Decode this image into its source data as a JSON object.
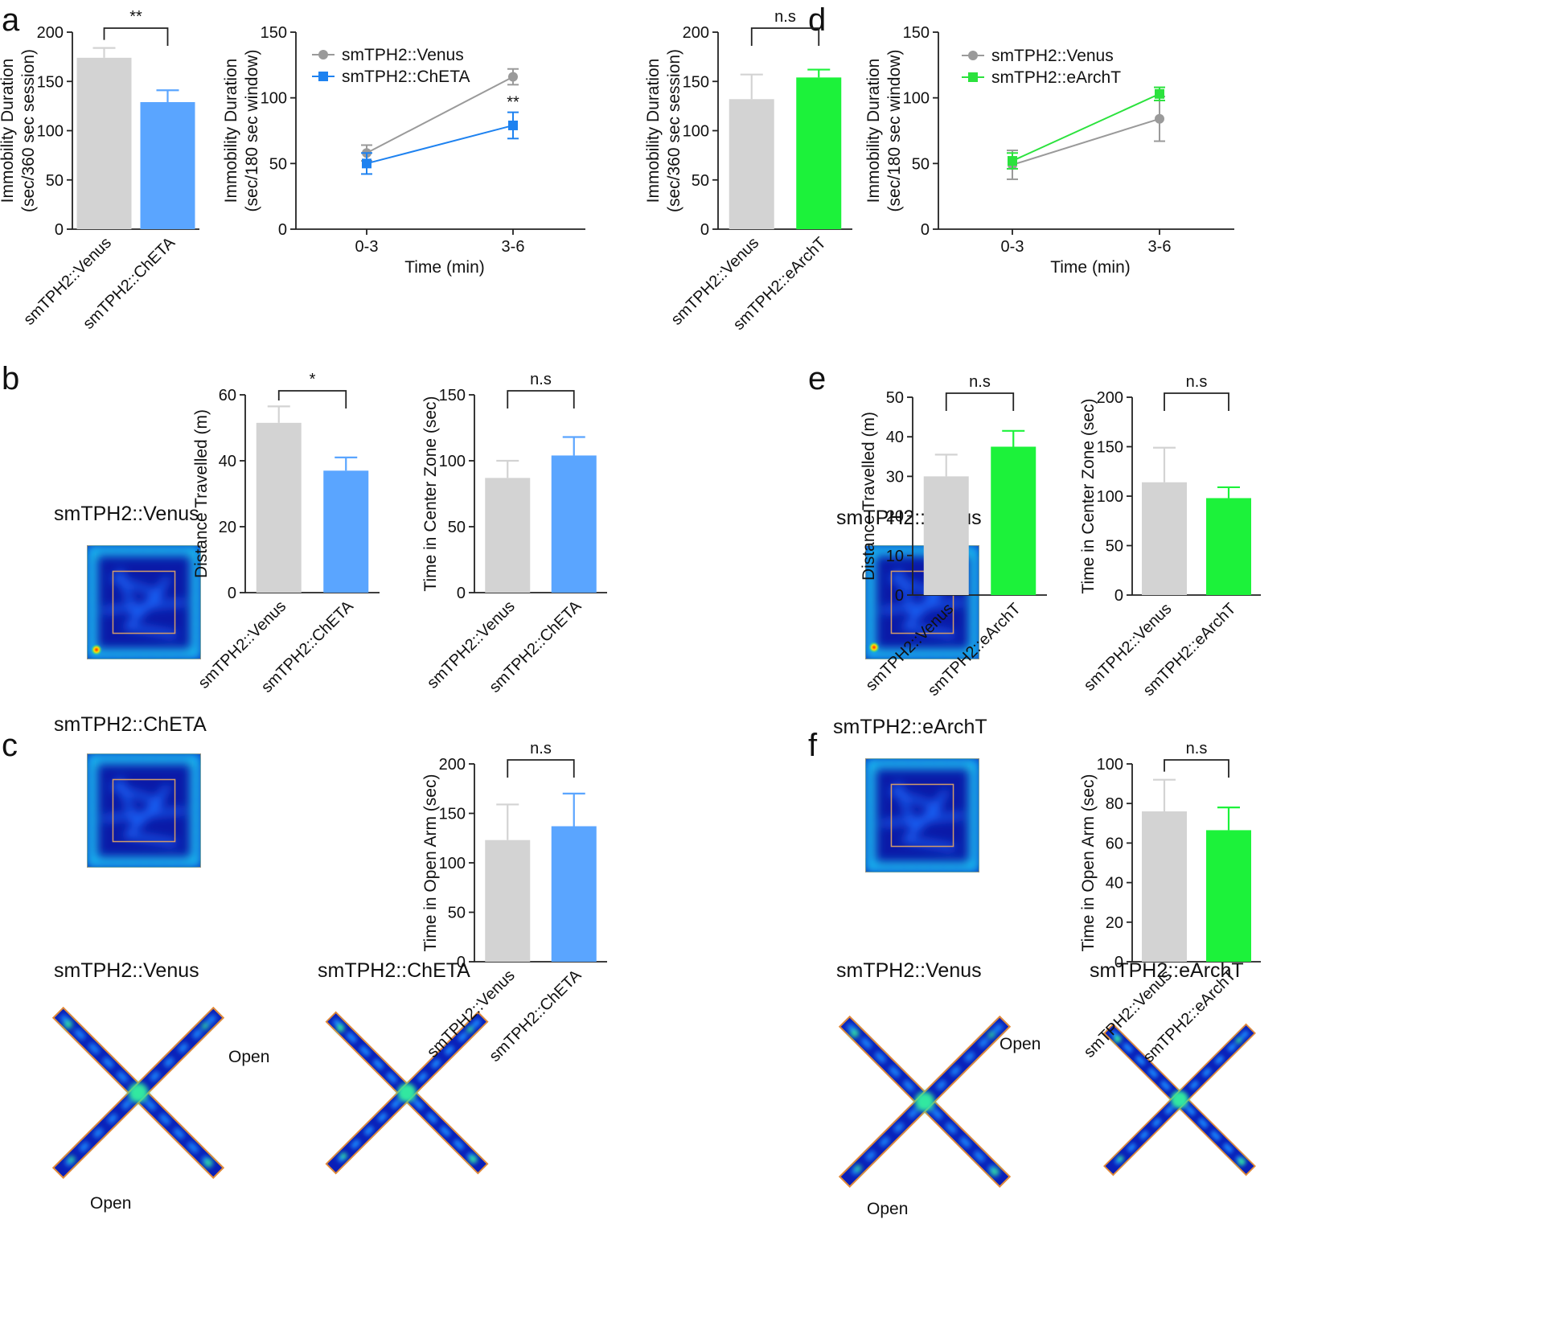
{
  "panel_letters": {
    "a": "a",
    "b": "b",
    "c": "c",
    "d": "d",
    "e": "e",
    "f": "f"
  },
  "colors": {
    "venus": "#d3d3d3",
    "chet": "#5aa5ff",
    "earch": "#1cf23a",
    "line_venus": "#9a9a9a",
    "line_chet": "#1e82f0",
    "line_earch": "#2be23d"
  },
  "heatmaps": {
    "b_venus_label": "smTPH2::Venus",
    "b_chet_label": "smTPH2::ChETA",
    "c_venus_label": "smTPH2::Venus",
    "c_chet_label": "smTPH2::ChETA",
    "c_open_top": "Open",
    "c_open_bottom": "Open",
    "e_venus_label": "smTPH2::Venus",
    "e_earch_label": "smTPH2::eArchT",
    "f_venus_label": "smTPH2::Venus",
    "f_earch_label": "smTPH2::eArchT",
    "f_open_top": "Open",
    "f_open_bottom": "Open"
  },
  "chart_data": [
    {
      "id": "a_bar",
      "type": "bar",
      "ylabel": [
        "Immobility Duration",
        "(sec/360 sec session)"
      ],
      "categories": [
        "smTPH2::Venus",
        "smTPH2::ChETA"
      ],
      "values": [
        174,
        129
      ],
      "errors": [
        10,
        12
      ],
      "colors": [
        "#d3d3d3",
        "#5aa5ff"
      ],
      "ylim": [
        0,
        200
      ],
      "yticks": [
        "0",
        "50",
        "100",
        "150",
        "200"
      ],
      "sig": "**"
    },
    {
      "id": "a_line",
      "type": "line",
      "ylabel": [
        "Immobility Duration",
        "(sec/180 sec window)"
      ],
      "xlabel": "Time (min)",
      "categories": [
        "0-3",
        "3-6"
      ],
      "ylim": [
        0,
        150
      ],
      "yticks": [
        "0",
        "50",
        "100",
        "150"
      ],
      "series": [
        {
          "name": "smTPH2::Venus",
          "values": [
            58,
            116
          ],
          "errors": [
            6,
            6
          ],
          "color": "#9a9a9a",
          "marker": "circle"
        },
        {
          "name": "smTPH2::ChETA",
          "values": [
            50,
            79
          ],
          "errors": [
            8,
            10
          ],
          "color": "#1e82f0",
          "marker": "square"
        }
      ],
      "annotation": "**"
    },
    {
      "id": "b_dist",
      "type": "bar",
      "ylabel": [
        "Distance Travelled (m)"
      ],
      "categories": [
        "smTPH2::Venus",
        "smTPH2::ChETA"
      ],
      "values": [
        51.5,
        37
      ],
      "errors": [
        5,
        4
      ],
      "colors": [
        "#d3d3d3",
        "#5aa5ff"
      ],
      "ylim": [
        0,
        60
      ],
      "yticks": [
        "0",
        "20",
        "40",
        "60"
      ],
      "sig": "*"
    },
    {
      "id": "b_center",
      "type": "bar",
      "ylabel": [
        "Time in Center Zone (sec)"
      ],
      "categories": [
        "smTPH2::Venus",
        "smTPH2::ChETA"
      ],
      "values": [
        87,
        104
      ],
      "errors": [
        13,
        14
      ],
      "colors": [
        "#d3d3d3",
        "#5aa5ff"
      ],
      "ylim": [
        0,
        150
      ],
      "yticks": [
        "0",
        "50",
        "100",
        "150"
      ],
      "sig": "n.s"
    },
    {
      "id": "c_open",
      "type": "bar",
      "ylabel": [
        "Time in Open Arm (sec)"
      ],
      "categories": [
        "smTPH2::Venus",
        "smTPH2::ChETA"
      ],
      "values": [
        123,
        137
      ],
      "errors": [
        36,
        33
      ],
      "colors": [
        "#d3d3d3",
        "#5aa5ff"
      ],
      "ylim": [
        0,
        200
      ],
      "yticks": [
        "0",
        "50",
        "100",
        "150",
        "200"
      ],
      "sig": "n.s"
    },
    {
      "id": "d_bar",
      "type": "bar",
      "ylabel": [
        "Immobility Duration",
        "(sec/360 sec session)"
      ],
      "categories": [
        "smTPH2::Venus",
        "smTPH2::eArchT"
      ],
      "values": [
        132,
        154
      ],
      "errors": [
        25,
        8
      ],
      "colors": [
        "#d3d3d3",
        "#1cf23a"
      ],
      "ylim": [
        0,
        200
      ],
      "yticks": [
        "0",
        "50",
        "100",
        "150",
        "200"
      ],
      "sig": "n.s"
    },
    {
      "id": "d_line",
      "type": "line",
      "ylabel": [
        "Immobility Duration",
        "(sec/180 sec window)"
      ],
      "xlabel": "Time (min)",
      "categories": [
        "0-3",
        "3-6"
      ],
      "ylim": [
        0,
        150
      ],
      "yticks": [
        "0",
        "50",
        "100",
        "150"
      ],
      "series": [
        {
          "name": "smTPH2::Venus",
          "values": [
            49,
            84
          ],
          "errors": [
            11,
            17
          ],
          "color": "#9a9a9a",
          "marker": "circle"
        },
        {
          "name": "smTPH2::eArchT",
          "values": [
            52,
            103
          ],
          "errors": [
            6,
            5
          ],
          "color": "#2be23d",
          "marker": "square"
        }
      ]
    },
    {
      "id": "e_dist",
      "type": "bar",
      "ylabel": [
        "Distance Travelled (m)"
      ],
      "categories": [
        "smTPH2::Venus",
        "smTPH2::eArchT"
      ],
      "values": [
        30,
        37.5
      ],
      "errors": [
        5.5,
        4
      ],
      "colors": [
        "#d3d3d3",
        "#1cf23a"
      ],
      "ylim": [
        0,
        50
      ],
      "yticks": [
        "0",
        "10",
        "20",
        "30",
        "40",
        "50"
      ],
      "sig": "n.s"
    },
    {
      "id": "e_center",
      "type": "bar",
      "ylabel": [
        "Time in Center Zone (sec)"
      ],
      "categories": [
        "smTPH2::Venus",
        "smTPH2::eArchT"
      ],
      "values": [
        114,
        98
      ],
      "errors": [
        35,
        11
      ],
      "colors": [
        "#d3d3d3",
        "#1cf23a"
      ],
      "ylim": [
        0,
        200
      ],
      "yticks": [
        "0",
        "50",
        "100",
        "150",
        "200"
      ],
      "sig": "n.s"
    },
    {
      "id": "f_open",
      "type": "bar",
      "ylabel": [
        "Time in Open Arm (sec)"
      ],
      "categories": [
        "smTPH2::Venus",
        "smTPH2::eArchT"
      ],
      "values": [
        76,
        66.5
      ],
      "errors": [
        16,
        11.5
      ],
      "colors": [
        "#d3d3d3",
        "#1cf23a"
      ],
      "ylim": [
        0,
        100
      ],
      "yticks": [
        "0",
        "20",
        "40",
        "60",
        "80",
        "100"
      ],
      "sig": "n.s"
    }
  ]
}
